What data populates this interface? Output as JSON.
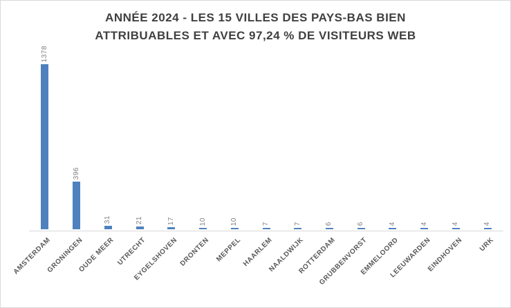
{
  "window": {
    "background": "#FFFFFF",
    "border_color": "#D9D9D9"
  },
  "chart_data": {
    "type": "bar",
    "title": "ANNÉE 2024 - LES 15 VILLES DES PAYS-BAS BIEN ATTRIBUABLES ET AVEC 97,24 % DE VISITEURS WEB",
    "title_lines": [
      "ANNÉE 2024 - LES 15 VILLES DES PAYS-BAS BIEN",
      "ATTRIBUABLES ET AVEC 97,24 % DE VISITEURS WEB"
    ],
    "categories": [
      "AMSTERDAM",
      "GRONINGEN",
      "OUDE MEER",
      "UTRECHT",
      "EYGELSHOVEN",
      "DRONTEN",
      "MEPPEL",
      "HAARLEM",
      "NAALDWIJK",
      "ROTTERDAM",
      "GRUBBENVORST",
      "EMMELOORD",
      "LEEUWARDEN",
      "EINDHOVEN",
      "URK"
    ],
    "values": [
      1378,
      396,
      31,
      21,
      17,
      10,
      10,
      7,
      7,
      6,
      6,
      4,
      4,
      4,
      4
    ],
    "xlabel": "",
    "ylabel": "",
    "ylim": [
      0,
      1450
    ],
    "gridlines": false,
    "legend": "none",
    "y_axis": "hidden",
    "data_labels_rotation": 90,
    "category_labels_rotation": 45,
    "bar_color": "#4E81BD",
    "axis_line_color": "#D9D9D9",
    "value_label_color": "#7F7F7F",
    "category_label_color": "#595959",
    "title_color": "#404040"
  }
}
